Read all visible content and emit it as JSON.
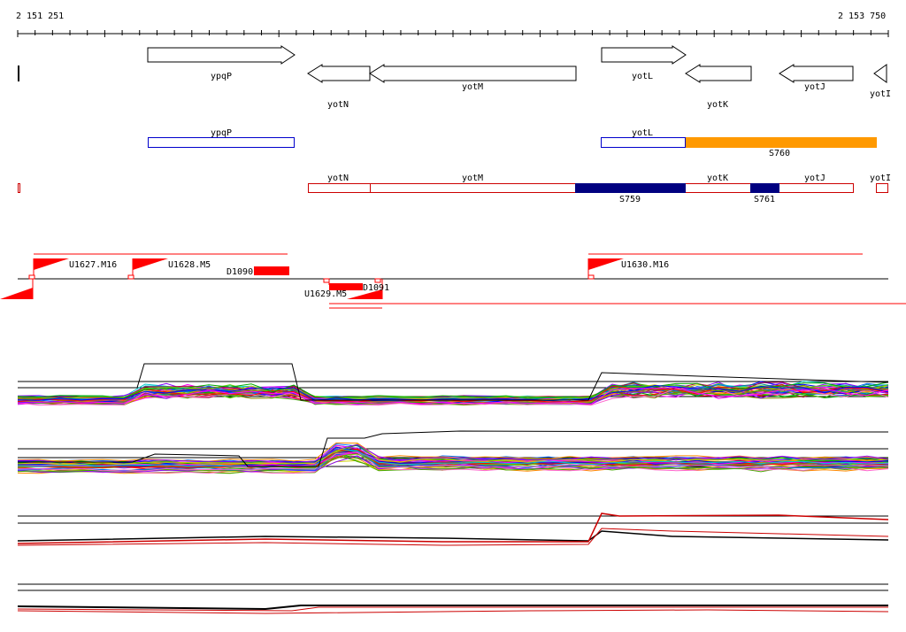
{
  "ruler": {
    "start_label": "2 151 251",
    "end_label": "2 153 750"
  },
  "genes": {
    "arrows": [
      {
        "name": "ypqP",
        "strand": "+"
      },
      {
        "name": "yotN",
        "strand": "-"
      },
      {
        "name": "yotM",
        "strand": "-"
      },
      {
        "name": "yotL",
        "strand": "+"
      },
      {
        "name": "yotK",
        "strand": "-"
      },
      {
        "name": "yotJ",
        "strand": "-"
      },
      {
        "name": "yotI",
        "strand": "-"
      }
    ]
  },
  "plus_strand_track": {
    "features": [
      "ypqP",
      "yotL"
    ],
    "segment": {
      "label": "S760",
      "color": "#ff9900"
    }
  },
  "minus_strand_track": {
    "features": [
      "yotN",
      "yotM",
      "yotK",
      "yotJ",
      "yotI"
    ],
    "segments": [
      {
        "label": "S759",
        "color": "#000080"
      },
      {
        "label": "S761",
        "color": "#000080"
      }
    ]
  },
  "tiling_features": {
    "upstream_labels": [
      "U1627.M16",
      "U1628.M5",
      "U1629.M5",
      "U1630.M16"
    ],
    "downstream_labels": [
      "D1090",
      "D1091"
    ]
  },
  "colors": {
    "plus_outline": "#0000cc",
    "minus_outline": "#cc0000",
    "feature_red": "#ff0000",
    "orange": "#ff9900",
    "navy": "#000080"
  }
}
